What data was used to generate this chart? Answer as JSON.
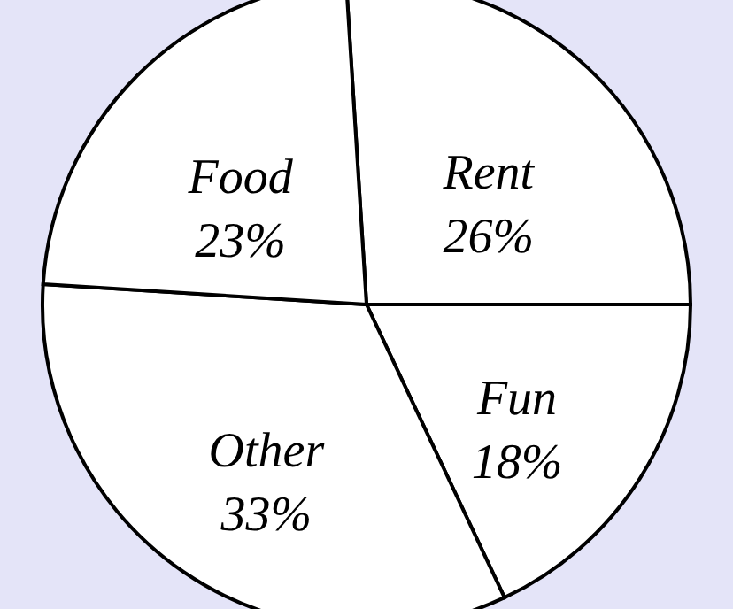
{
  "chart_data": {
    "type": "pie",
    "categories": [
      "Rent",
      "Fun",
      "Other",
      "Food"
    ],
    "values": [
      26,
      18,
      33,
      23
    ],
    "value_labels": [
      "26%",
      "18%",
      "33%",
      "23%"
    ],
    "colors": [
      "#ffffff",
      "#ffffff",
      "#ffffff",
      "#ffffff"
    ]
  }
}
